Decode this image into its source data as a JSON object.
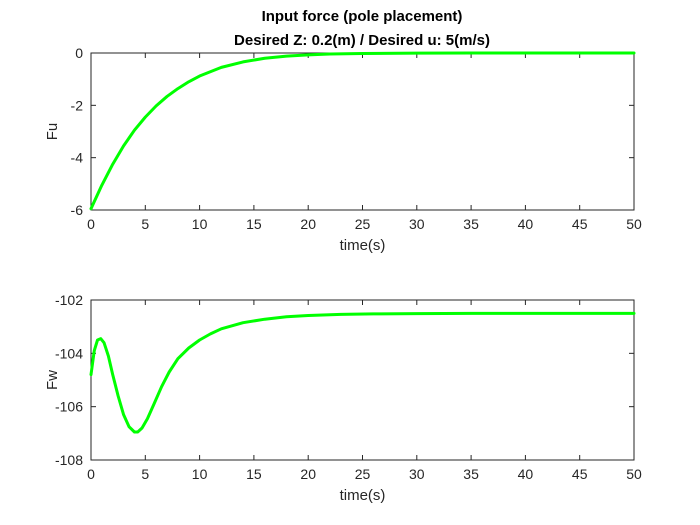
{
  "figure": {
    "title_line1": "Input force (pole placement)",
    "title_line2": "Desired Z: 0.2(m) / Desired u: 5(m/s)"
  },
  "chart_data": [
    {
      "type": "line",
      "title": "Input force (pole placement)\nDesired Z: 0.2(m) / Desired u: 5(m/s)",
      "xlabel": "time(s)",
      "ylabel": "Fu",
      "xlim": [
        0,
        50
      ],
      "ylim": [
        -6,
        0
      ],
      "xticks": [
        0,
        5,
        10,
        15,
        20,
        25,
        30,
        35,
        40,
        45,
        50
      ],
      "yticks": [
        -6,
        -4,
        -2,
        0
      ],
      "grid": false,
      "color": "#00ff00",
      "series": [
        {
          "x": [
            0,
            1,
            2,
            3,
            4,
            5,
            6,
            7,
            8,
            9,
            10,
            12,
            14,
            16,
            18,
            20,
            22,
            25,
            30,
            35,
            40,
            45,
            50
          ],
          "y": [
            -5.95,
            -5.05,
            -4.25,
            -3.55,
            -2.95,
            -2.45,
            -2.02,
            -1.66,
            -1.36,
            -1.1,
            -0.88,
            -0.55,
            -0.34,
            -0.2,
            -0.12,
            -0.07,
            -0.04,
            -0.02,
            -0.005,
            -0.001,
            0,
            0,
            0
          ]
        }
      ]
    },
    {
      "type": "line",
      "xlabel": "time(s)",
      "ylabel": "Fw",
      "xlim": [
        0,
        50
      ],
      "ylim": [
        -108,
        -102
      ],
      "xticks": [
        0,
        5,
        10,
        15,
        20,
        25,
        30,
        35,
        40,
        45,
        50
      ],
      "yticks": [
        -108,
        -106,
        -104,
        -102
      ],
      "grid": false,
      "color": "#00ff00",
      "series": [
        {
          "x": [
            0,
            0.3,
            0.6,
            0.9,
            1.2,
            1.6,
            2.0,
            2.5,
            3.0,
            3.5,
            4.0,
            4.3,
            4.7,
            5.2,
            5.8,
            6.5,
            7.2,
            8.0,
            9.0,
            10.0,
            11.0,
            12.0,
            14.0,
            16.0,
            18.0,
            20.0,
            23.0,
            26.0,
            30.0,
            35.0,
            40.0,
            45.0,
            50.0
          ],
          "y": [
            -104.8,
            -103.9,
            -103.5,
            -103.45,
            -103.6,
            -104.1,
            -104.8,
            -105.6,
            -106.3,
            -106.75,
            -106.95,
            -106.95,
            -106.8,
            -106.45,
            -105.9,
            -105.25,
            -104.7,
            -104.2,
            -103.8,
            -103.5,
            -103.27,
            -103.08,
            -102.85,
            -102.72,
            -102.63,
            -102.58,
            -102.54,
            -102.52,
            -102.51,
            -102.5,
            -102.5,
            -102.5,
            -102.5
          ]
        }
      ]
    }
  ]
}
